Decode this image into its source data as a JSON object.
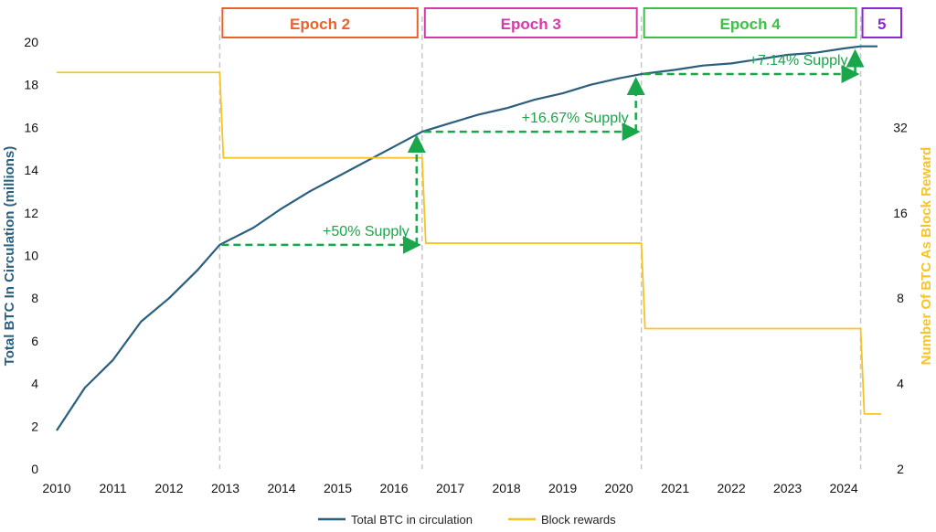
{
  "chart_data": {
    "type": "line",
    "title": "",
    "ylabel_left": "Total BTC In Circulation (millions)",
    "ylabel_right": "Number Of BTC As Block Reward",
    "xlim": [
      2010,
      2024.6
    ],
    "ylim_left": [
      0,
      20
    ],
    "ylim_right": [
      2,
      64
    ],
    "right_axis_scale": "log2",
    "grid": false,
    "legend_position": "bottom-center",
    "x_ticks": [
      "2010",
      "2011",
      "2012",
      "2013",
      "2014",
      "2015",
      "2016",
      "2017",
      "2018",
      "2019",
      "2020",
      "2021",
      "2022",
      "2023",
      "2024"
    ],
    "y_ticks_left": [
      "0",
      "2",
      "4",
      "6",
      "8",
      "10",
      "12",
      "14",
      "16",
      "18",
      "20"
    ],
    "y_ticks_right": [
      "2",
      "4",
      "8",
      "16",
      "32"
    ],
    "series": [
      {
        "name": "Total BTC in circulation",
        "color": "#2b5f7e",
        "axis": "left",
        "x": [
          2010.0,
          2010.5,
          2011.0,
          2011.5,
          2012.0,
          2012.5,
          2012.9,
          2013.5,
          2014.0,
          2014.5,
          2015.0,
          2015.5,
          2016.0,
          2016.5,
          2017.0,
          2017.5,
          2018.0,
          2018.5,
          2019.0,
          2019.5,
          2020.0,
          2020.4,
          2021.0,
          2021.5,
          2022.0,
          2022.5,
          2023.0,
          2023.5,
          2024.0,
          2024.3,
          2024.6
        ],
        "y": [
          1.8,
          3.8,
          5.1,
          6.9,
          8.0,
          9.3,
          10.5,
          11.3,
          12.2,
          13.0,
          13.7,
          14.4,
          15.1,
          15.8,
          16.2,
          16.6,
          16.9,
          17.3,
          17.6,
          18.0,
          18.3,
          18.5,
          18.7,
          18.9,
          19.0,
          19.2,
          19.4,
          19.5,
          19.7,
          19.8,
          19.8
        ]
      },
      {
        "name": "Block rewards",
        "color": "#f7c325",
        "axis": "right",
        "step": true,
        "x": [
          2010.0,
          2012.9,
          2016.5,
          2020.4,
          2024.3,
          2024.6
        ],
        "y": [
          50,
          25,
          12.5,
          6.25,
          3.125,
          3.125
        ]
      }
    ],
    "halvings": [
      2012.9,
      2016.5,
      2020.4,
      2024.3
    ],
    "epochs": [
      {
        "label": "Epoch 2",
        "start": 2012.9,
        "end": 2016.5,
        "color": "#e8632b"
      },
      {
        "label": "Epoch 3",
        "start": 2016.5,
        "end": 2020.4,
        "color": "#d63aa8"
      },
      {
        "label": "Epoch 4",
        "start": 2020.4,
        "end": 2024.3,
        "color": "#3cc04a"
      },
      {
        "label": "5",
        "start": 2024.3,
        "end": 2024.6,
        "color": "#8a2bd1"
      }
    ],
    "annotations": [
      {
        "text": "+50% Supply",
        "from_x": 2012.9,
        "to_x": 2016.5,
        "from_y": 10.5,
        "to_y": 15.8
      },
      {
        "text": "+16.67% Supply",
        "from_x": 2016.5,
        "to_x": 2020.4,
        "from_y": 15.8,
        "to_y": 18.5
      },
      {
        "text": "+7.14% Supply",
        "from_x": 2020.4,
        "to_x": 2024.3,
        "from_y": 18.5,
        "to_y": 19.8
      }
    ],
    "annotation_color": "#1aa64a"
  }
}
